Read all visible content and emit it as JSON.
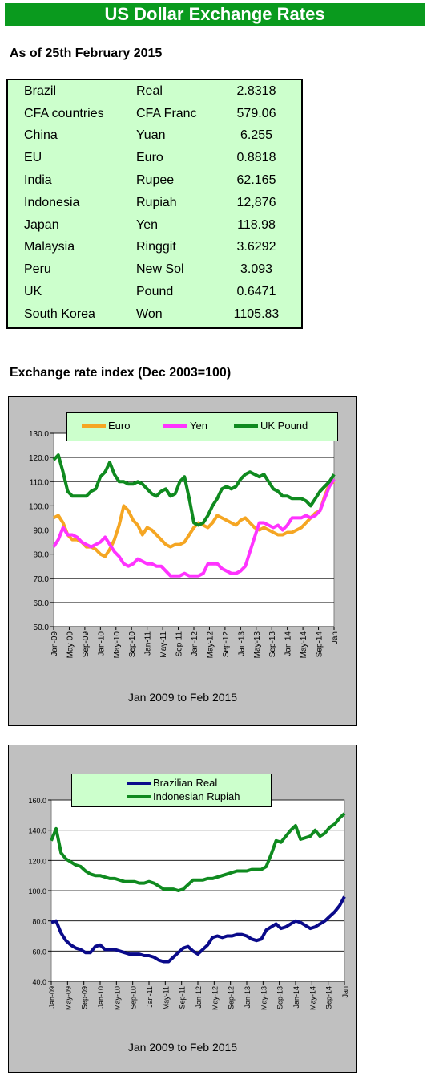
{
  "header": {
    "title": "US Dollar Exchange Rates"
  },
  "as_of": "As of 25th February 2015",
  "rates": [
    {
      "country": "Brazil",
      "currency": "Real",
      "rate": "2.8318"
    },
    {
      "country": "CFA countries",
      "currency": "CFA Franc",
      "rate": "579.06"
    },
    {
      "country": "China",
      "currency": "Yuan",
      "rate": "6.255"
    },
    {
      "country": "EU",
      "currency": "Euro",
      "rate": "0.8818"
    },
    {
      "country": "India",
      "currency": "Rupee",
      "rate": "62.165"
    },
    {
      "country": "Indonesia",
      "currency": "Rupiah",
      "rate": "12,876"
    },
    {
      "country": "Japan",
      "currency": "Yen",
      "rate": "118.98"
    },
    {
      "country": "Malaysia",
      "currency": "Ringgit",
      "rate": "3.6292"
    },
    {
      "country": "Peru",
      "currency": "New Sol",
      "rate": "3.093"
    },
    {
      "country": "UK",
      "currency": "Pound",
      "rate": "0.6471"
    },
    {
      "country": "South Korea",
      "currency": "Won",
      "rate": "1105.83"
    }
  ],
  "index_heading": "Exchange rate index (Dec 2003=100)",
  "chart_data": [
    {
      "type": "line",
      "caption": "Jan 2009 to Feb 2015",
      "ylim": [
        50,
        130
      ],
      "yticks": [
        "50.0",
        "60.0",
        "70.0",
        "80.0",
        "90.0",
        "100.0",
        "110.0",
        "120.0",
        "130.0"
      ],
      "xticks": [
        "Jan-09",
        "May-09",
        "Sep-09",
        "Jan-10",
        "May-10",
        "Sep-10",
        "Jan-11",
        "May-11",
        "Sep-11",
        "Jan-12",
        "May-12",
        "Sep-12",
        "Jan-13",
        "May-13",
        "Sep-13",
        "Jan-14",
        "May-14",
        "Sep-14",
        "Jan"
      ],
      "grid": true,
      "legend": "top",
      "series": [
        {
          "name": "Euro",
          "color": "#f5a623",
          "values": [
            95,
            96,
            93,
            88,
            86,
            86,
            85,
            83,
            83,
            82,
            80,
            79,
            82,
            86,
            92,
            100,
            98,
            94,
            92,
            88,
            91,
            90,
            88,
            86,
            84,
            83,
            84,
            84,
            85,
            88,
            91,
            93,
            92,
            91,
            93,
            96,
            95,
            94,
            93,
            92,
            94,
            95,
            93,
            91,
            90,
            91,
            90,
            89,
            88,
            88,
            89,
            89,
            90,
            91,
            93,
            95,
            97,
            98,
            104,
            109,
            110
          ]
        },
        {
          "name": "Yen",
          "color": "#ff33ff",
          "values": [
            83,
            86,
            91,
            88,
            88,
            87,
            85,
            84,
            83,
            84,
            85,
            87,
            84,
            81,
            79,
            76,
            75,
            76,
            78,
            77,
            76,
            76,
            75,
            75,
            73,
            71,
            71,
            71,
            72,
            71,
            71,
            71,
            72,
            76,
            76,
            76,
            74,
            73,
            72,
            72,
            73,
            75,
            81,
            87,
            93,
            93,
            92,
            91,
            92,
            90,
            92,
            95,
            95,
            95,
            96,
            95,
            96,
            98,
            103,
            108,
            111
          ]
        },
        {
          "name": "UK Pound",
          "color": "#0f8a1f",
          "values": [
            119,
            121,
            114,
            106,
            104,
            104,
            104,
            104,
            106,
            107,
            112,
            114,
            118,
            113,
            110,
            110,
            109,
            109,
            110,
            109,
            107,
            105,
            104,
            106,
            107,
            104,
            105,
            110,
            112,
            103,
            93,
            92,
            93,
            96,
            100,
            103,
            107,
            108,
            107,
            108,
            111,
            113,
            114,
            113,
            112,
            113,
            110,
            107,
            106,
            104,
            104,
            103,
            103,
            103,
            102,
            100,
            103,
            106,
            108,
            110,
            113
          ]
        }
      ]
    },
    {
      "type": "line",
      "caption": "Jan 2009 to  Feb 2015",
      "ylim": [
        40,
        160
      ],
      "yticks": [
        "40.0",
        "60.0",
        "80.0",
        "100.0",
        "120.0",
        "140.0",
        "160.0"
      ],
      "xticks": [
        "Jan-09",
        "May-09",
        "Sep-09",
        "Jan-10",
        "May-10",
        "Sep-10",
        "Jan-11",
        "May-11",
        "Sep-11",
        "Jan-12",
        "May-12",
        "Sep-12",
        "Jan-13",
        "May-13",
        "Sep-13",
        "Jan-14",
        "May-14",
        "Sep-14",
        "Jan"
      ],
      "grid": true,
      "legend": "top",
      "series": [
        {
          "name": "Brazilian Real",
          "color": "#0a0a8a",
          "values": [
            79,
            80,
            72,
            67,
            64,
            62,
            61,
            59,
            59,
            63,
            64,
            61,
            61,
            61,
            60,
            59,
            58,
            58,
            58,
            57,
            57,
            56,
            54,
            53,
            53,
            56,
            59,
            62,
            63,
            60,
            58,
            61,
            64,
            69,
            70,
            69,
            70,
            70,
            71,
            71,
            70,
            68,
            67,
            68,
            74,
            76,
            78,
            75,
            76,
            78,
            80,
            79,
            77,
            75,
            76,
            78,
            80,
            83,
            86,
            90,
            96
          ]
        },
        {
          "name": "Indonesian Rupiah",
          "color": "#0f8a1f",
          "values": [
            133,
            141,
            125,
            121,
            119,
            117,
            116,
            113,
            111,
            110,
            110,
            109,
            108,
            108,
            107,
            106,
            106,
            106,
            105,
            105,
            106,
            105,
            103,
            101,
            101,
            101,
            100,
            101,
            104,
            107,
            107,
            107,
            108,
            108,
            109,
            110,
            111,
            112,
            113,
            113,
            113,
            114,
            114,
            114,
            116,
            124,
            133,
            132,
            136,
            140,
            143,
            134,
            135,
            136,
            140,
            136,
            138,
            142,
            144,
            148,
            151
          ]
        }
      ]
    }
  ]
}
